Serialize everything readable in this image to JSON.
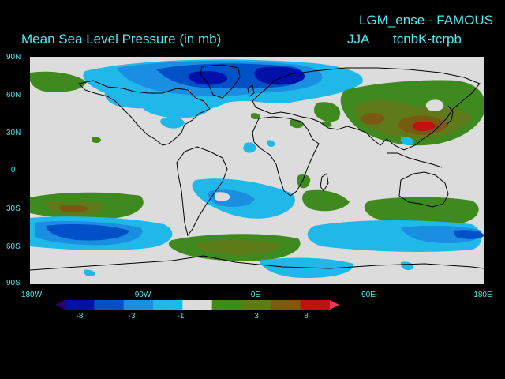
{
  "header": {
    "title_right": "LGM_ense - FAMOUS",
    "title_left": "Mean Sea Level Pressure (in mb)",
    "season": "JJA",
    "experiment": "tcnbK-tcrpb"
  },
  "map": {
    "projection": "equirectangular",
    "lon_range": [
      -180,
      180
    ],
    "lat_range": [
      -90,
      90
    ],
    "lat_labels": [
      "90N",
      "60N",
      "30N",
      "0",
      "30S",
      "60S",
      "90S"
    ],
    "lon_labels": [
      "180W",
      "90W",
      "0E",
      "90E",
      "180E"
    ]
  },
  "legend": {
    "tick_labels": [
      "-8",
      "-3",
      "-1",
      "3",
      "8"
    ],
    "bins": [
      {
        "color": "#2a0070"
      },
      {
        "color": "#0010a8"
      },
      {
        "color": "#0050c8"
      },
      {
        "color": "#1a8ee0"
      },
      {
        "color": "#20b8e8"
      },
      {
        "color": "#dcdcdc"
      },
      {
        "color": "#3f8a1e"
      },
      {
        "color": "#5e7a1a"
      },
      {
        "color": "#7a5a12"
      },
      {
        "color": "#c01010"
      },
      {
        "color": "#e8365a"
      }
    ]
  },
  "colors": {
    "background": "#000000",
    "text": "#4fe8f0",
    "neutral": "#dcdcdc",
    "light_blue": "#20b8e8",
    "mid_blue": "#1a8ee0",
    "blue": "#0050c8",
    "dark_blue": "#0010a8",
    "green": "#3f8a1e",
    "olive": "#5e7a1a",
    "brown": "#7a5a12",
    "red": "#c01010"
  }
}
